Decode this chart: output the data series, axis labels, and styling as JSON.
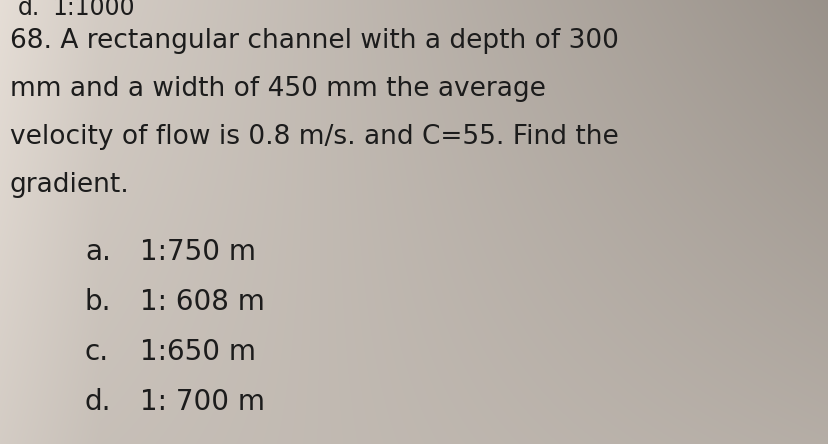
{
  "background_color_top": "#ccc8c0",
  "background_color_mid": "#d8d4cc",
  "background_color_right_dark": "#b0a898",
  "prev_label": "d.",
  "prev_value": "1:1000",
  "question_number": "68.",
  "question_text_line1": "A rectangular channel with a depth of 300",
  "question_text_line2": "mm and a width of 450 mm the average",
  "question_text_line3": "velocity of flow is 0.8 m/s. and C=55. Find the",
  "question_text_line4": "gradient.",
  "options": [
    {
      "label": "a.",
      "text": "1:750 m"
    },
    {
      "label": "b.",
      "text": "1: 608 m"
    },
    {
      "label": "c.",
      "text": "1:650 m"
    },
    {
      "label": "d.",
      "text": "1: 700 m"
    }
  ],
  "font_size_question": 19,
  "font_size_options": 20,
  "font_size_prev": 17,
  "text_color": "#1c1c1c",
  "font_family": "DejaVu Sans"
}
